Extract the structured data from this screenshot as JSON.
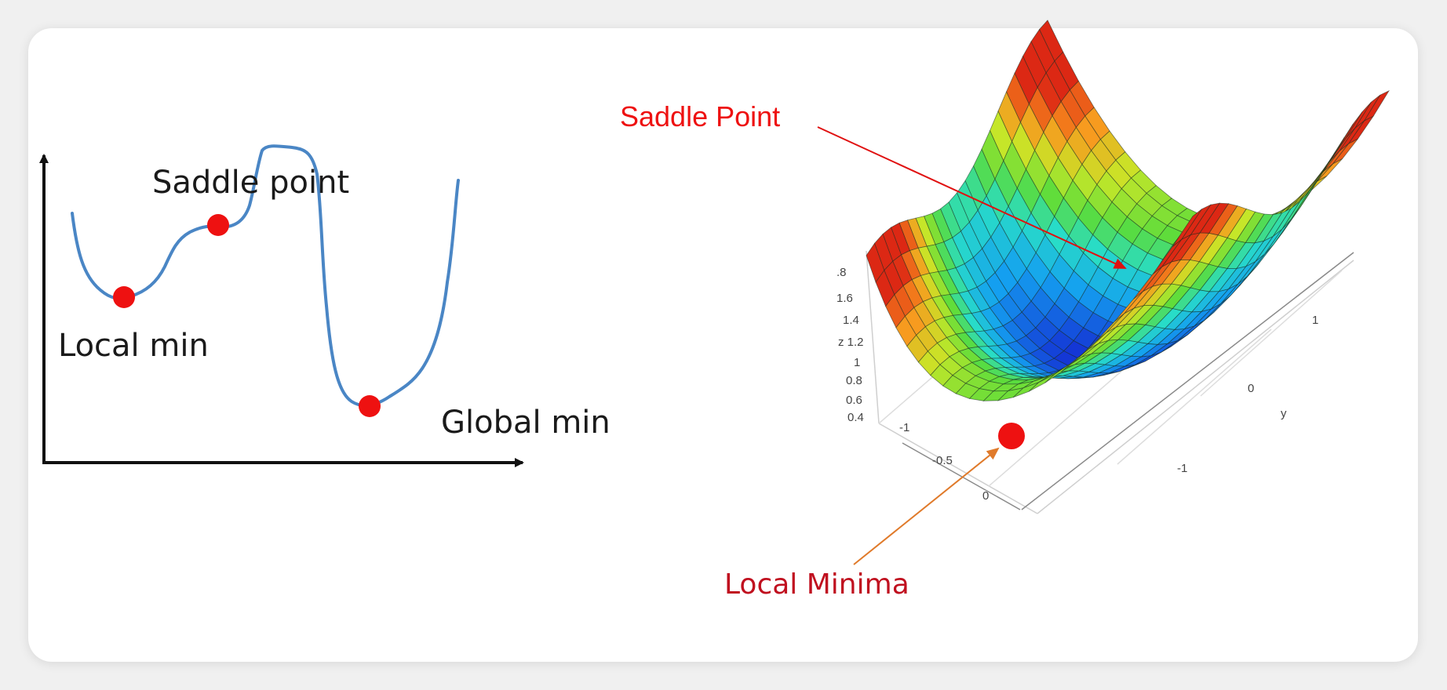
{
  "left_diagram": {
    "labels": {
      "saddle": "Saddle point",
      "local": "Local min",
      "global": "Global min"
    },
    "colors": {
      "curve": "#4a86c5",
      "point": "#ee1111",
      "axis": "#111111"
    }
  },
  "right_diagram": {
    "labels": {
      "saddle": "Saddle Point",
      "local": "Local Minima"
    },
    "z_ticks": [
      ".8",
      "1.6",
      "1.4",
      "z 1.2",
      "1",
      "0.8",
      "0.6",
      "0.4"
    ],
    "x_ticks": [
      "-1",
      "-0.5",
      "0"
    ],
    "y_ticks": [
      "1",
      "0",
      "-1"
    ],
    "y_axis_label": "y",
    "colors": {
      "saddle_label": "#ee1111",
      "local_label": "#c0101f",
      "local_arrow": "#e07a2a",
      "point": "#ee1111"
    }
  }
}
